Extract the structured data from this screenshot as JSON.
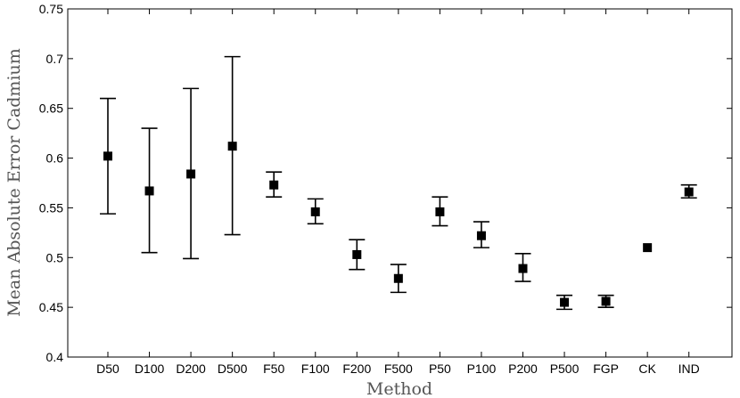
{
  "chart_data": {
    "type": "scatter",
    "title": "",
    "xlabel": "Method",
    "ylabel": "Mean Absolute Error Cadmium",
    "ylim": [
      0.4,
      0.75
    ],
    "yticks": [
      0.4,
      0.45,
      0.5,
      0.55,
      0.6,
      0.65,
      0.7,
      0.75
    ],
    "ytick_labels": [
      "0.4",
      "0.45",
      "0.5",
      "0.55",
      "0.6",
      "0.65",
      "0.7",
      "0.75"
    ],
    "categories": [
      "D50",
      "D100",
      "D200",
      "D500",
      "F50",
      "F100",
      "F200",
      "F500",
      "P50",
      "P100",
      "P200",
      "P500",
      "FGP",
      "CK",
      "IND"
    ],
    "values": [
      0.602,
      0.567,
      0.584,
      0.612,
      0.573,
      0.546,
      0.503,
      0.479,
      0.546,
      0.522,
      0.489,
      0.455,
      0.456,
      0.51,
      0.566
    ],
    "error_low": [
      0.544,
      0.505,
      0.499,
      0.523,
      0.561,
      0.534,
      0.488,
      0.465,
      0.532,
      0.51,
      0.476,
      0.448,
      0.45,
      0.51,
      0.56
    ],
    "error_high": [
      0.66,
      0.63,
      0.67,
      0.702,
      0.586,
      0.559,
      0.518,
      0.493,
      0.561,
      0.536,
      0.504,
      0.462,
      0.462,
      0.51,
      0.573
    ],
    "grid": false,
    "legend": "none",
    "colors": {
      "marker": "#000000",
      "errorbar": "#000000",
      "axes": "#000000"
    }
  }
}
